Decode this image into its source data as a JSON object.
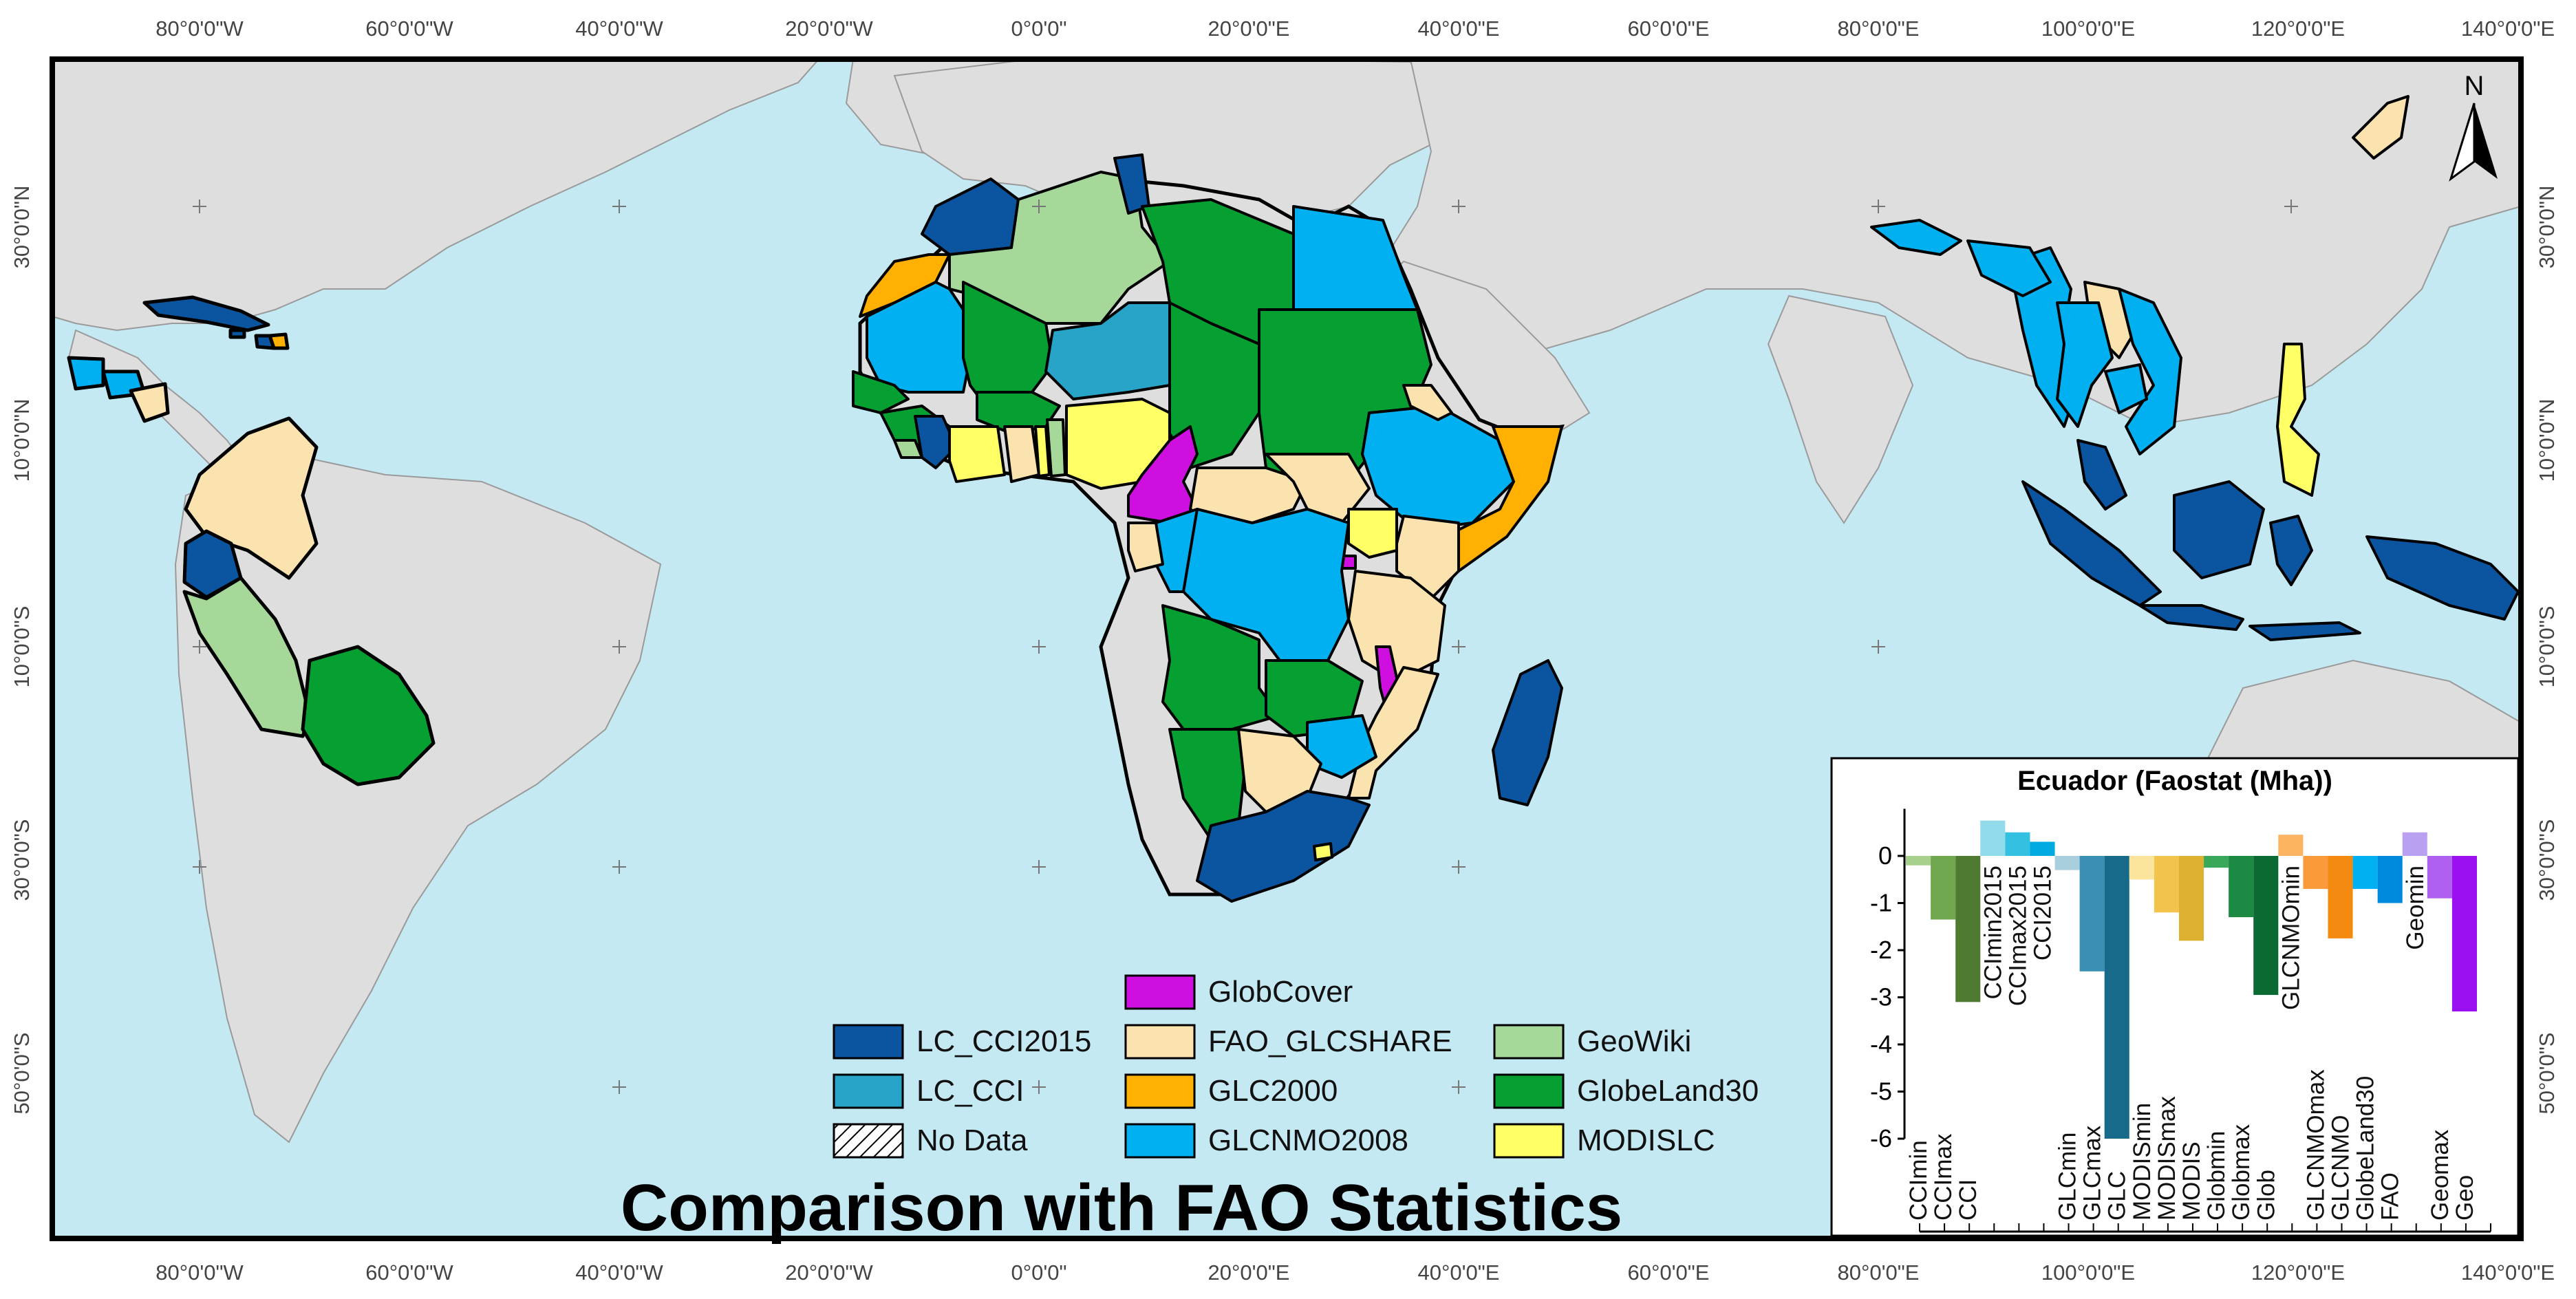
{
  "map": {
    "title": "Comparison with FAO Statistics",
    "north_label": "N",
    "lon_ticks": [
      "80°0'0\"W",
      "60°0'0\"W",
      "40°0'0\"W",
      "20°0'0\"W",
      "0°0'0\"",
      "20°0'0\"E",
      "40°0'0\"E",
      "60°0'0\"E",
      "80°0'0\"E",
      "100°0'0\"E",
      "120°0'0\"E",
      "140°0'0\"E"
    ],
    "lat_ticks": [
      "30°0'0\"N",
      "10°0'0\"N",
      "10°0'0\"S",
      "30°0'0\"S",
      "50°0'0\"S"
    ],
    "colors": {
      "ocean": "#c5e9f2",
      "land": "#dedede",
      "LC_CCI2015": "#0a54a0",
      "LC_CCI": "#27a4c7",
      "GlobCover": "#cf0fe0",
      "FAO_GLCSHARE": "#fbe3b0",
      "GLC2000": "#ffb000",
      "GLCNMO2008": "#00b0f0",
      "GeoWiki": "#a6d89a",
      "GlobeLand30": "#06a032",
      "MODISLC": "#ffff66"
    }
  },
  "legend": [
    {
      "label": "LC_CCI2015",
      "color": "#0a54a0",
      "pattern": false
    },
    {
      "label": "LC_CCI",
      "color": "#27a4c7",
      "pattern": false
    },
    {
      "label": "No Data",
      "color": "#ffffff",
      "pattern": true
    },
    {
      "label": "GlobCover",
      "color": "#cf0fe0",
      "pattern": false
    },
    {
      "label": "FAO_GLCSHARE",
      "color": "#fbe3b0",
      "pattern": false
    },
    {
      "label": "GLC2000",
      "color": "#ffb000",
      "pattern": false
    },
    {
      "label": "GLCNMO2008",
      "color": "#00b0f0",
      "pattern": false
    },
    {
      "label": "GeoWiki",
      "color": "#a6d89a",
      "pattern": false
    },
    {
      "label": "GlobeLand30",
      "color": "#06a032",
      "pattern": false
    },
    {
      "label": "MODISLC",
      "color": "#ffff66",
      "pattern": false
    }
  ],
  "chart_data": {
    "type": "bar",
    "title": "Ecuador (Faostat (Mha))",
    "ylim": [
      -6,
      1
    ],
    "yticks": [
      0,
      -1,
      -2,
      -3,
      -4,
      -5,
      -6
    ],
    "xlabel": "",
    "ylabel": "",
    "series": [
      {
        "name": "CCImin",
        "value": -0.2,
        "color": "#a8d08d"
      },
      {
        "name": "CCImax",
        "value": -1.35,
        "color": "#70a64e"
      },
      {
        "name": "CCI",
        "value": -3.1,
        "color": "#4e7a31"
      },
      {
        "name": "CCImin2015",
        "value": 0.75,
        "color": "#92dbea"
      },
      {
        "name": "CCImax2015",
        "value": 0.5,
        "color": "#34c0e0"
      },
      {
        "name": "CCI2015",
        "value": 0.3,
        "color": "#00a9e0"
      },
      {
        "name": "GLCmin",
        "value": -0.3,
        "color": "#a9cfdf"
      },
      {
        "name": "GLCmax",
        "value": -2.45,
        "color": "#3a8fb4"
      },
      {
        "name": "GLC",
        "value": -6.0,
        "color": "#186a8a"
      },
      {
        "name": "MODISmin",
        "value": -0.5,
        "color": "#fbe49c"
      },
      {
        "name": "MODISmax",
        "value": -1.2,
        "color": "#f2c44c"
      },
      {
        "name": "MODIS",
        "value": -1.8,
        "color": "#ddb030"
      },
      {
        "name": "Globmin",
        "value": -0.25,
        "color": "#3aa85a"
      },
      {
        "name": "Globmax",
        "value": -1.3,
        "color": "#1d8a44"
      },
      {
        "name": "Glob",
        "value": -2.95,
        "color": "#0a6a32"
      },
      {
        "name": "GLCNMOmin",
        "value": 0.45,
        "color": "#fbb562"
      },
      {
        "name": "GLCNMOmax",
        "value": -0.7,
        "color": "#fa9a3a"
      },
      {
        "name": "GLCNMO",
        "value": -1.75,
        "color": "#f58a10"
      },
      {
        "name": "GlobeLand30",
        "value": -0.7,
        "color": "#00b0f0"
      },
      {
        "name": "FAO",
        "value": -1.0,
        "color": "#0088dd"
      },
      {
        "name": "Geomin",
        "value": 0.5,
        "color": "#b9a0f0"
      },
      {
        "name": "Geomax",
        "value": -0.9,
        "color": "#b060f0"
      },
      {
        "name": "Geo",
        "value": -3.3,
        "color": "#9a10f0"
      }
    ]
  }
}
